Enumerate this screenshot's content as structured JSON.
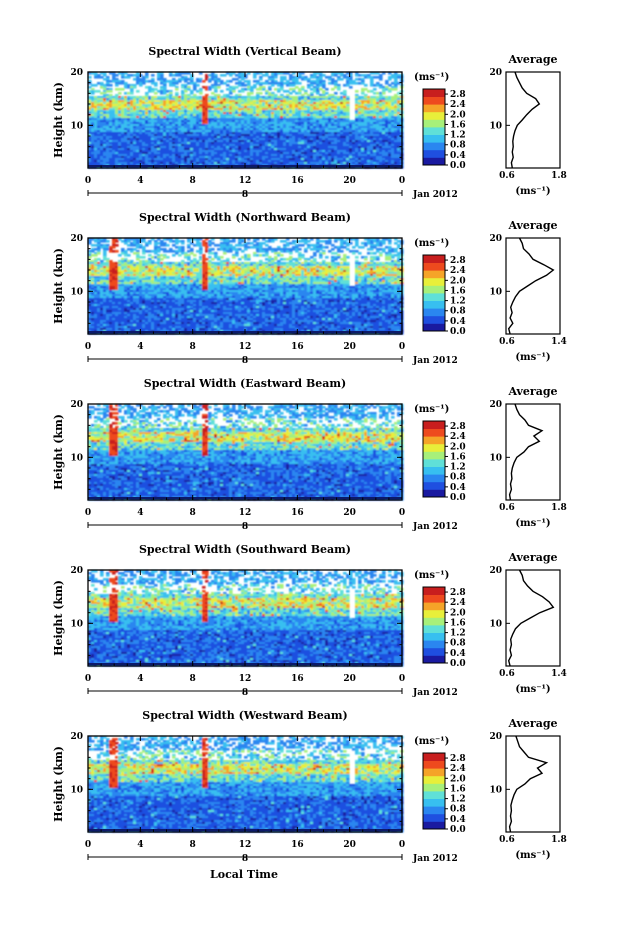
{
  "figure": {
    "bottom_xlabel": "Local Time",
    "x_ticks": [
      "0",
      "4",
      "8",
      "12",
      "16",
      "20",
      "0"
    ],
    "date_marker": "8",
    "date_label": "Jan 2012",
    "ylabel": "Height (km)",
    "y_ticks": [
      "20",
      "10"
    ],
    "colorbar_unit": "(ms⁻¹)",
    "colorbar_ticks": [
      "2.8",
      "2.4",
      "2.0",
      "1.6",
      "1.2",
      "0.8",
      "0.4",
      "0.0"
    ],
    "colors": {
      "colormap": [
        "#1a1aa0",
        "#1f4fe0",
        "#2a86f0",
        "#37bff0",
        "#5fe0d8",
        "#a7f07a",
        "#e8ef3a",
        "#f5a428",
        "#ee4a1e",
        "#c81e1e"
      ],
      "background": "#ffffff",
      "axes": "#000000"
    }
  },
  "chart_data": [
    {
      "type": "heatmap",
      "title": "Spectral Width (Vertical Beam)",
      "xlabel": "",
      "ylabel": "Height (km)",
      "x_range": [
        0,
        24
      ],
      "y_range": [
        2,
        20
      ],
      "value_range": [
        0.0,
        3.0
      ],
      "x_tick_labels": [
        "0",
        "4",
        "8",
        "12",
        "16",
        "20",
        "0"
      ],
      "y_tick_labels": [
        "20",
        "10"
      ],
      "colorbar_ticks": [
        2.8,
        2.4,
        2.0,
        1.6,
        1.2,
        0.8,
        0.4,
        0.0
      ],
      "colorbar_unit": "(ms⁻¹)",
      "enhanced_times_lt": [
        8.8
      ],
      "data_gap_times_lt": [
        20.0
      ],
      "profile": {
        "title": "Average",
        "xlabel": "(ms⁻¹)",
        "x_range": [
          0.6,
          1.8
        ],
        "x_tick_labels": [
          "0.6",
          "1.8"
        ],
        "y_range": [
          2,
          20
        ],
        "y_tick_labels": [
          "20",
          "10"
        ],
        "heights_km": [
          2,
          3,
          4,
          5,
          6,
          7,
          8,
          9,
          10,
          11,
          12,
          13,
          14,
          15,
          16,
          17,
          18,
          19,
          20
        ],
        "values": [
          0.74,
          0.72,
          0.76,
          0.74,
          0.76,
          0.75,
          0.77,
          0.8,
          0.85,
          0.96,
          1.06,
          1.18,
          1.34,
          1.26,
          1.06,
          0.96,
          0.9,
          0.84,
          0.8
        ]
      }
    },
    {
      "type": "heatmap",
      "title": "Spectral Width (Northward Beam)",
      "xlabel": "",
      "ylabel": "Height (km)",
      "x_range": [
        0,
        24
      ],
      "y_range": [
        2,
        20
      ],
      "value_range": [
        0.0,
        3.0
      ],
      "x_tick_labels": [
        "0",
        "4",
        "8",
        "12",
        "16",
        "20",
        "0"
      ],
      "y_tick_labels": [
        "20",
        "10"
      ],
      "colorbar_ticks": [
        2.8,
        2.4,
        2.0,
        1.6,
        1.2,
        0.8,
        0.4,
        0.0
      ],
      "colorbar_unit": "(ms⁻¹)",
      "enhanced_times_lt": [
        1.8,
        8.8
      ],
      "data_gap_times_lt": [
        20.0
      ],
      "profile": {
        "title": "Average",
        "xlabel": "(ms⁻¹)",
        "x_range": [
          0.6,
          1.4
        ],
        "x_tick_labels": [
          "0.6",
          "1.4"
        ],
        "y_range": [
          2,
          20
        ],
        "y_tick_labels": [
          "20",
          "10"
        ],
        "heights_km": [
          2,
          3,
          4,
          5,
          6,
          7,
          8,
          9,
          10,
          11,
          12,
          13,
          14,
          15,
          16,
          17,
          18,
          19,
          20
        ],
        "values": [
          0.66,
          0.64,
          0.7,
          0.66,
          0.69,
          0.67,
          0.7,
          0.74,
          0.8,
          0.92,
          1.04,
          1.2,
          1.3,
          1.16,
          1.0,
          0.94,
          0.86,
          0.84,
          0.8
        ]
      }
    },
    {
      "type": "heatmap",
      "title": "Spectral Width (Eastward Beam)",
      "xlabel": "",
      "ylabel": "Height (km)",
      "x_range": [
        0,
        24
      ],
      "y_range": [
        2,
        20
      ],
      "value_range": [
        0.0,
        3.0
      ],
      "x_tick_labels": [
        "0",
        "4",
        "8",
        "12",
        "16",
        "20",
        "0"
      ],
      "y_tick_labels": [
        "20",
        "10"
      ],
      "colorbar_ticks": [
        2.8,
        2.4,
        2.0,
        1.6,
        1.2,
        0.8,
        0.4,
        0.0
      ],
      "colorbar_unit": "(ms⁻¹)",
      "enhanced_times_lt": [
        1.8,
        8.8
      ],
      "data_gap_times_lt": [],
      "profile": {
        "title": "Average",
        "xlabel": "(ms⁻¹)",
        "x_range": [
          0.6,
          1.8
        ],
        "x_tick_labels": [
          "0.6",
          "1.8"
        ],
        "y_range": [
          2,
          20
        ],
        "y_tick_labels": [
          "20",
          "10"
        ],
        "heights_km": [
          2,
          3,
          4,
          5,
          6,
          7,
          8,
          9,
          10,
          11,
          12,
          13,
          14,
          15,
          16,
          17,
          18,
          19,
          20
        ],
        "values": [
          0.7,
          0.68,
          0.72,
          0.7,
          0.73,
          0.72,
          0.74,
          0.78,
          0.84,
          1.0,
          1.1,
          1.34,
          1.22,
          1.4,
          1.1,
          1.02,
          0.9,
          0.84,
          0.8
        ]
      }
    },
    {
      "type": "heatmap",
      "title": "Spectral Width (Southward Beam)",
      "xlabel": "",
      "ylabel": "Height (km)",
      "x_range": [
        0,
        24
      ],
      "y_range": [
        2,
        20
      ],
      "value_range": [
        0.0,
        3.0
      ],
      "x_tick_labels": [
        "0",
        "4",
        "8",
        "12",
        "16",
        "20",
        "0"
      ],
      "y_tick_labels": [
        "20",
        "10"
      ],
      "colorbar_ticks": [
        2.8,
        2.4,
        2.0,
        1.6,
        1.2,
        0.8,
        0.4,
        0.0
      ],
      "colorbar_unit": "(ms⁻¹)",
      "enhanced_times_lt": [
        1.8,
        8.8
      ],
      "data_gap_times_lt": [
        20.0
      ],
      "profile": {
        "title": "Average",
        "xlabel": "(ms⁻¹)",
        "x_range": [
          0.6,
          1.4
        ],
        "x_tick_labels": [
          "0.6",
          "1.4"
        ],
        "y_range": [
          2,
          20
        ],
        "y_tick_labels": [
          "20",
          "10"
        ],
        "heights_km": [
          2,
          3,
          4,
          5,
          6,
          7,
          8,
          9,
          10,
          11,
          12,
          13,
          14,
          15,
          16,
          17,
          18,
          19,
          20
        ],
        "values": [
          0.66,
          0.64,
          0.68,
          0.66,
          0.68,
          0.67,
          0.7,
          0.74,
          0.82,
          0.96,
          1.1,
          1.3,
          1.24,
          1.14,
          1.0,
          0.92,
          0.86,
          0.84,
          0.8
        ]
      }
    },
    {
      "type": "heatmap",
      "title": "Spectral Width (Westward Beam)",
      "xlabel": "Local Time",
      "ylabel": "Height (km)",
      "x_range": [
        0,
        24
      ],
      "y_range": [
        2,
        20
      ],
      "value_range": [
        0.0,
        3.0
      ],
      "x_tick_labels": [
        "0",
        "4",
        "8",
        "12",
        "16",
        "20",
        "0"
      ],
      "y_tick_labels": [
        "20",
        "10"
      ],
      "colorbar_ticks": [
        2.8,
        2.4,
        2.0,
        1.6,
        1.2,
        0.8,
        0.4,
        0.0
      ],
      "colorbar_unit": "(ms⁻¹)",
      "enhanced_times_lt": [
        1.8,
        8.8
      ],
      "data_gap_times_lt": [
        20.0
      ],
      "profile": {
        "title": "Average",
        "xlabel": "(ms⁻¹)",
        "x_range": [
          0.6,
          1.8
        ],
        "x_tick_labels": [
          "0.6",
          "1.8"
        ],
        "y_range": [
          2,
          20
        ],
        "y_tick_labels": [
          "20",
          "10"
        ],
        "heights_km": [
          2,
          3,
          4,
          5,
          6,
          7,
          8,
          9,
          10,
          11,
          12,
          13,
          14,
          15,
          16,
          17,
          18,
          19,
          20
        ],
        "values": [
          0.7,
          0.68,
          0.72,
          0.7,
          0.72,
          0.71,
          0.74,
          0.78,
          0.84,
          1.02,
          1.14,
          1.4,
          1.3,
          1.5,
          1.1,
          1.0,
          0.9,
          0.86,
          0.82
        ]
      }
    }
  ]
}
